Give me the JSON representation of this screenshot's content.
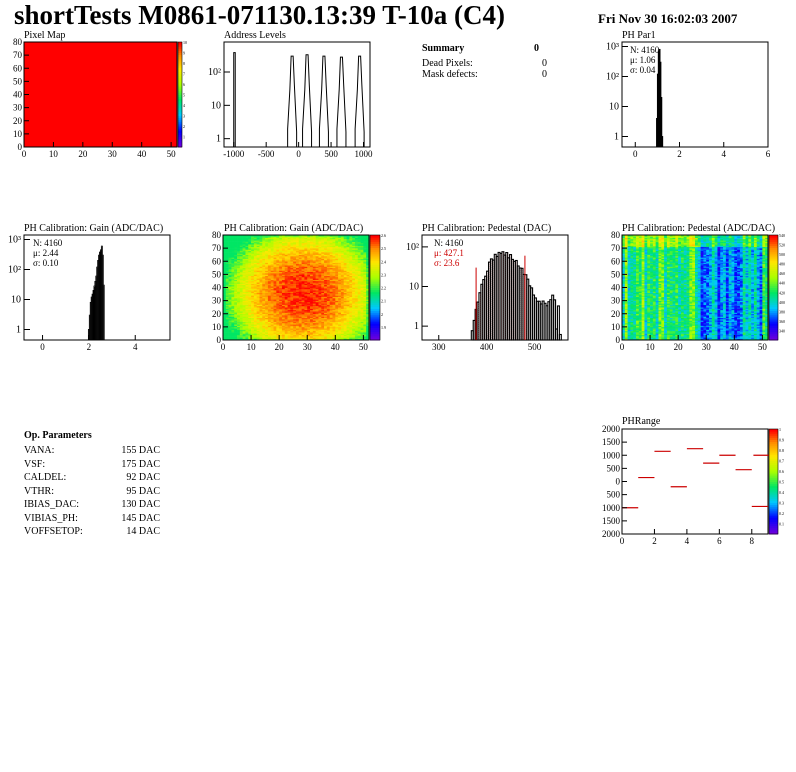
{
  "header": {
    "title": "shortTests M0861-071130.13:39 T-10a (C4)",
    "datetime": "Fri Nov 30 16:02:03 2007"
  },
  "summary": {
    "heading": "Summary",
    "heading_value": "0",
    "rows": [
      {
        "label": "Dead Pixels:",
        "value": "0"
      },
      {
        "label": "Mask defects:",
        "value": "0"
      }
    ]
  },
  "op_parameters": {
    "heading": "Op. Parameters",
    "rows": [
      {
        "label": "VANA:",
        "value": "155 DAC"
      },
      {
        "label": "VSF:",
        "value": "175 DAC"
      },
      {
        "label": "CALDEL:",
        "value": "92 DAC"
      },
      {
        "label": "VTHR:",
        "value": "95 DAC"
      },
      {
        "label": "IBIAS_DAC:",
        "value": "130 DAC"
      },
      {
        "label": "VIBIAS_PH:",
        "value": "145 DAC"
      },
      {
        "label": "VOFFSETOP:",
        "value": "14 DAC"
      }
    ]
  },
  "colors": {
    "palette_red": "#ff0000",
    "hist_line": "#000000",
    "fit_red": "#cc0000"
  },
  "chart_data": [
    {
      "id": "pixel-map",
      "type": "heatmap",
      "title": "Pixel Map",
      "xlim": [
        0,
        52
      ],
      "ylim": [
        0,
        80
      ],
      "xticks": [
        "0",
        "10",
        "20",
        "30",
        "40",
        "50"
      ],
      "yticks": [
        "0",
        "10",
        "20",
        "30",
        "40",
        "50",
        "60",
        "70",
        "80"
      ],
      "uniform_value": 10,
      "zlim": [
        0,
        10
      ],
      "zticks": [
        "1",
        "2",
        "3",
        "4",
        "5",
        "6",
        "7",
        "8",
        "9",
        "10"
      ]
    },
    {
      "id": "address-levels",
      "type": "bar",
      "title": "Address Levels",
      "log_y": true,
      "xlim": [
        -1150,
        1100
      ],
      "xticks": [
        "-1000",
        "-500",
        "0",
        "500",
        "1000"
      ],
      "ytick_labels": [
        "1",
        "10",
        "10²"
      ],
      "peaks": [
        {
          "x": -1000,
          "height": 380
        },
        {
          "x": -100,
          "height": 300
        },
        {
          "x": 130,
          "height": 330
        },
        {
          "x": 390,
          "height": 300
        },
        {
          "x": 660,
          "height": 280
        },
        {
          "x": 940,
          "height": 300
        }
      ]
    },
    {
      "id": "ph-par1",
      "type": "bar",
      "title": "PH Par1",
      "log_y": true,
      "xlim": [
        -0.6,
        6
      ],
      "xticks": [
        "0",
        "2",
        "4",
        "6"
      ],
      "ytick_labels": [
        "1",
        "10",
        "10²",
        "10³"
      ],
      "stats": [
        {
          "label": "N:",
          "value": "4160"
        },
        {
          "label": "μ:",
          "value": "1.06"
        },
        {
          "label": "σ:",
          "value": "0.04"
        }
      ],
      "bins": [
        [
          0.96,
          4
        ],
        [
          1.0,
          120
        ],
        [
          1.04,
          700
        ],
        [
          1.08,
          800
        ],
        [
          1.12,
          300
        ],
        [
          1.16,
          20
        ],
        [
          1.2,
          1
        ]
      ]
    },
    {
      "id": "ph-gain-1d",
      "type": "bar",
      "title": "PH Calibration: Gain (ADC/DAC)",
      "log_y": true,
      "xlim": [
        -0.8,
        5.5
      ],
      "xticks": [
        "0",
        "2",
        "4"
      ],
      "ytick_labels": [
        "1",
        "10",
        "10²",
        "10³"
      ],
      "stats": [
        {
          "label": "N:",
          "value": "4160"
        },
        {
          "label": "μ:",
          "value": "2.44"
        },
        {
          "label": "σ:",
          "value": "0.10"
        }
      ],
      "bins": [
        [
          1.98,
          1
        ],
        [
          2.02,
          3
        ],
        [
          2.06,
          8
        ],
        [
          2.1,
          12
        ],
        [
          2.14,
          15
        ],
        [
          2.18,
          20
        ],
        [
          2.22,
          28
        ],
        [
          2.26,
          40
        ],
        [
          2.3,
          60
        ],
        [
          2.34,
          120
        ],
        [
          2.38,
          200
        ],
        [
          2.42,
          300
        ],
        [
          2.46,
          380
        ],
        [
          2.5,
          450
        ],
        [
          2.54,
          600
        ],
        [
          2.58,
          300
        ],
        [
          2.62,
          30
        ]
      ]
    },
    {
      "id": "ph-gain-map",
      "type": "heatmap",
      "title": "PH Calibration: Gain (ADC/DAC)",
      "xlim": [
        0,
        52
      ],
      "ylim": [
        0,
        80
      ],
      "xticks": [
        "0",
        "10",
        "20",
        "30",
        "40",
        "50"
      ],
      "yticks": [
        "0",
        "10",
        "20",
        "30",
        "40",
        "50",
        "60",
        "70",
        "80"
      ],
      "zlim": [
        1.9,
        2.6
      ],
      "zticks": [
        "1.9",
        "2",
        "2.1",
        "2.2",
        "2.3",
        "2.4",
        "2.5",
        "2.6"
      ]
    },
    {
      "id": "ph-pedestal-1d",
      "type": "bar",
      "title": "PH Calibration: Pedestal (DAC)",
      "log_y": true,
      "xlim": [
        265,
        570
      ],
      "xticks": [
        "300",
        "400",
        "500"
      ],
      "ytick_labels": [
        "1",
        "10",
        "10²"
      ],
      "stats": [
        {
          "label": "N:",
          "value": "4160",
          "color": "#000000"
        },
        {
          "label": "μ:",
          "value": "427.1",
          "color": "#cc0000"
        },
        {
          "label": "σ:",
          "value": "23.6",
          "color": "#cc0000"
        }
      ],
      "fit_range": [
        378,
        480
      ]
    },
    {
      "id": "ph-pedestal-map",
      "type": "heatmap",
      "title": "PH Calibration: Pedestal (ADC/DAC)",
      "xlim": [
        0,
        52
      ],
      "ylim": [
        0,
        80
      ],
      "xticks": [
        "0",
        "10",
        "20",
        "30",
        "40",
        "50"
      ],
      "yticks": [
        "0",
        "10",
        "20",
        "30",
        "40",
        "50",
        "60",
        "70",
        "80"
      ],
      "zticks": [
        "340",
        "360",
        "380",
        "400",
        "420",
        "440",
        "460",
        "480",
        "500",
        "520",
        "540"
      ]
    },
    {
      "id": "ph-range",
      "type": "scatter",
      "title": "PHRange",
      "xlim": [
        0,
        9
      ],
      "ylim": [
        -2000,
        2000
      ],
      "xticks": [
        "0",
        "2",
        "4",
        "6",
        "8"
      ],
      "yticks": [
        "-2000",
        "-1500",
        "-1000",
        "-500",
        "0",
        "500",
        "1000",
        "1500",
        "2000"
      ],
      "ytick_display": [
        "2000",
        "1500",
        "1000",
        "500",
        "0",
        "500",
        "1000",
        "1500",
        "2000"
      ],
      "zticks": [
        "0.1",
        "0.2",
        "0.3",
        "0.4",
        "0.5",
        "0.6",
        "0.7",
        "0.8",
        "0.9",
        "1"
      ],
      "segments": [
        {
          "x": 0,
          "y": -1000
        },
        {
          "x": 1,
          "y": 150
        },
        {
          "x": 2,
          "y": 1150
        },
        {
          "x": 3,
          "y": -200
        },
        {
          "x": 4,
          "y": 1250
        },
        {
          "x": 5,
          "y": 700
        },
        {
          "x": 6,
          "y": 1000
        },
        {
          "x": 7,
          "y": 450
        },
        {
          "x": 8,
          "y": -950
        },
        {
          "x": 8.1,
          "y": 1000
        }
      ]
    }
  ]
}
